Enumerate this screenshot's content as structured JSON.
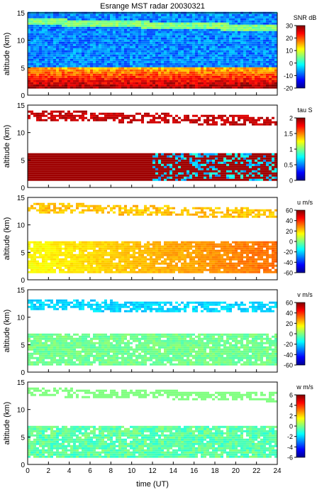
{
  "chart_data": {
    "title": "Esrange MST radar 20030321",
    "type": "heatmap",
    "xlabel": "time (UT)",
    "xlim": [
      0,
      24
    ],
    "xticks": [
      0,
      2,
      4,
      6,
      8,
      10,
      12,
      14,
      16,
      18,
      20,
      22,
      24
    ],
    "panels": [
      {
        "id": "snr",
        "ylabel": "altitude (km)",
        "ylim": [
          0,
          15
        ],
        "yticks": [
          0,
          5,
          10,
          15
        ],
        "colorbar": {
          "label": "SNR dB",
          "min": -20,
          "max": 30,
          "ticks": [
            30,
            20,
            10,
            0,
            -10,
            -20
          ]
        },
        "description_values": {
          "boundary_layer_km": [
            1,
            5
          ],
          "tropopause_band_km": [
            12,
            14
          ]
        }
      },
      {
        "id": "tau",
        "ylabel": "altitude (km)",
        "ylim": [
          0,
          15
        ],
        "yticks": [
          0,
          5,
          10,
          15
        ],
        "colorbar": {
          "label": "tau S",
          "min": 0,
          "max": 2,
          "ticks": [
            2,
            1.5,
            1,
            0.5,
            0
          ]
        }
      },
      {
        "id": "u",
        "ylabel": "altitude (km)",
        "ylim": [
          0,
          15
        ],
        "yticks": [
          0,
          5,
          10,
          15
        ],
        "colorbar": {
          "label": "u m/s",
          "min": -60,
          "max": 60,
          "ticks": [
            60,
            40,
            20,
            0,
            -20,
            -40,
            -60
          ]
        }
      },
      {
        "id": "v",
        "ylabel": "altitude (km)",
        "ylim": [
          0,
          15
        ],
        "yticks": [
          0,
          5,
          10,
          15
        ],
        "colorbar": {
          "label": "v m/s",
          "min": -60,
          "max": 60,
          "ticks": [
            60,
            40,
            20,
            0,
            -20,
            -40,
            -60
          ]
        }
      },
      {
        "id": "w",
        "ylabel": "altitude (km)",
        "ylim": [
          0,
          15
        ],
        "yticks": [
          0,
          5,
          10,
          15
        ],
        "colorbar": {
          "label": "w m/s",
          "min": -6,
          "max": 6,
          "ticks": [
            6,
            4,
            2,
            0,
            -2,
            -4,
            -6
          ]
        }
      }
    ]
  },
  "colors": {
    "jet": [
      "#00008f",
      "#0000ff",
      "#0080ff",
      "#00ffff",
      "#80ff80",
      "#ffff00",
      "#ff8000",
      "#ff0000",
      "#800000"
    ]
  }
}
